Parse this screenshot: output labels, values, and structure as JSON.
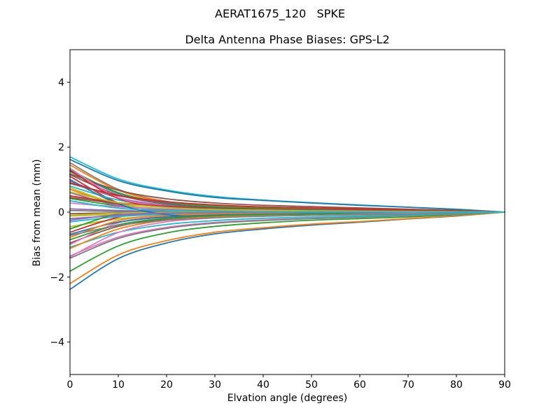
{
  "chart_data": {
    "type": "line",
    "suptitle": "AERAT1675_120   SPKE",
    "title": "Delta Antenna Phase Biases: GPS-L2",
    "xlabel": "Elvation angle (degrees)",
    "ylabel": "Bias from mean (mm)",
    "xlim": [
      0,
      90
    ],
    "ylim": [
      -5,
      5
    ],
    "xticks": [
      0,
      10,
      20,
      30,
      40,
      50,
      60,
      70,
      80,
      90
    ],
    "yticks": [
      -4,
      -2,
      0,
      2,
      4
    ],
    "grid": false,
    "legend": "none",
    "background": "#ffffff",
    "palette": [
      "#1f77b4",
      "#ff7f0e",
      "#2ca02c",
      "#d62728",
      "#9467bd",
      "#8c564b",
      "#e377c2",
      "#7f7f7f",
      "#bcbd22",
      "#17becf"
    ],
    "x": [
      0,
      10,
      20,
      30,
      40,
      50,
      60,
      70,
      80,
      90
    ],
    "series": [
      {
        "c": 0,
        "values": [
          -2.38,
          -1.43,
          -0.95,
          -0.67,
          -0.52,
          -0.4,
          -0.31,
          -0.21,
          -0.12,
          0
        ]
      },
      {
        "c": 1,
        "values": [
          -2.2,
          -1.32,
          -0.88,
          -0.62,
          -0.48,
          -0.37,
          -0.29,
          -0.2,
          -0.11,
          0
        ]
      },
      {
        "c": 2,
        "values": [
          -1.82,
          -1.04,
          -0.64,
          -0.44,
          -0.33,
          -0.25,
          -0.2,
          -0.15,
          -0.08,
          0
        ]
      },
      {
        "c": 3,
        "values": [
          1.1,
          0.28,
          -0.09,
          -0.13,
          -0.09,
          -0.06,
          -0.03,
          -0.01,
          0,
          0
        ]
      },
      {
        "c": 4,
        "values": [
          0.95,
          0.44,
          0.21,
          0.12,
          0.09,
          0.07,
          0.05,
          0.03,
          0.02,
          0
        ]
      },
      {
        "c": 5,
        "values": [
          1.15,
          0.53,
          0.25,
          0.15,
          0.1,
          0.08,
          0.06,
          0.03,
          0.02,
          0
        ]
      },
      {
        "c": 6,
        "values": [
          -1.35,
          -0.77,
          -0.47,
          -0.32,
          -0.24,
          -0.19,
          -0.15,
          -0.11,
          -0.06,
          0
        ]
      },
      {
        "c": 7,
        "values": [
          -1.42,
          -0.81,
          -0.5,
          -0.34,
          -0.26,
          -0.2,
          -0.16,
          -0.11,
          -0.06,
          0
        ]
      },
      {
        "c": 8,
        "values": [
          -0.45,
          -0.21,
          -0.1,
          -0.06,
          -0.04,
          -0.03,
          -0.02,
          -0.01,
          -0.01,
          0
        ]
      },
      {
        "c": 9,
        "values": [
          1.7,
          1.02,
          0.68,
          0.48,
          0.37,
          0.29,
          0.22,
          0.15,
          0.09,
          0
        ]
      },
      {
        "c": 0,
        "values": [
          1.62,
          0.97,
          0.65,
          0.45,
          0.36,
          0.28,
          0.21,
          0.15,
          0.08,
          0
        ]
      },
      {
        "c": 1,
        "values": [
          0.7,
          0.23,
          0.09,
          0.05,
          0.03,
          0.02,
          0.01,
          0.01,
          0.01,
          0
        ]
      },
      {
        "c": 2,
        "values": [
          0.42,
          0.19,
          0.09,
          0.05,
          0.04,
          0.03,
          0.02,
          0.01,
          0.01,
          0
        ]
      },
      {
        "c": 3,
        "values": [
          -0.62,
          -0.16,
          0.05,
          0.07,
          0.05,
          0.03,
          0.02,
          0.01,
          0,
          0
        ]
      },
      {
        "c": 4,
        "values": [
          0.6,
          0.2,
          0.08,
          0.04,
          0.02,
          0.02,
          0.01,
          0.01,
          0.01,
          0
        ]
      },
      {
        "c": 5,
        "values": [
          -0.95,
          -0.44,
          -0.21,
          -0.12,
          -0.09,
          -0.07,
          -0.05,
          -0.03,
          -0.02,
          0
        ]
      },
      {
        "c": 6,
        "values": [
          -1.0,
          -0.33,
          -0.13,
          -0.07,
          -0.04,
          -0.03,
          -0.02,
          -0.01,
          -0.01,
          0
        ]
      },
      {
        "c": 7,
        "values": [
          1.52,
          0.7,
          0.33,
          0.2,
          0.14,
          0.11,
          0.08,
          0.05,
          0.03,
          0
        ]
      },
      {
        "c": 8,
        "values": [
          -0.12,
          -0.07,
          -0.04,
          -0.03,
          -0.02,
          -0.02,
          -0.01,
          -0.01,
          -0.01,
          0
        ]
      },
      {
        "c": 9,
        "values": [
          0.8,
          0.37,
          0.18,
          0.1,
          0.07,
          0.06,
          0.04,
          0.02,
          0.02,
          0
        ]
      },
      {
        "c": 0,
        "values": [
          1.25,
          0.58,
          0.28,
          0.16,
          0.11,
          0.09,
          0.06,
          0.04,
          0.03,
          0
        ]
      },
      {
        "c": 1,
        "values": [
          1.45,
          0.67,
          0.32,
          0.19,
          0.13,
          0.1,
          0.07,
          0.04,
          0.03,
          0
        ]
      },
      {
        "c": 2,
        "values": [
          1.3,
          0.6,
          0.29,
          0.17,
          0.12,
          0.09,
          0.07,
          0.04,
          0.03,
          0
        ]
      },
      {
        "c": 3,
        "values": [
          1.28,
          0.42,
          0.17,
          0.09,
          0.05,
          0.04,
          0.03,
          0.01,
          0.01,
          0
        ]
      },
      {
        "c": 4,
        "values": [
          -0.2,
          -0.11,
          -0.07,
          -0.05,
          -0.04,
          -0.03,
          -0.02,
          -0.02,
          -0.01,
          0
        ]
      },
      {
        "c": 5,
        "values": [
          1.18,
          0.67,
          0.41,
          0.28,
          0.21,
          0.17,
          0.13,
          0.09,
          0.05,
          0
        ]
      },
      {
        "c": 6,
        "values": [
          1.35,
          0.45,
          0.18,
          0.09,
          0.05,
          0.04,
          0.03,
          0.01,
          0.01,
          0
        ]
      },
      {
        "c": 7,
        "values": [
          0.88,
          0.5,
          0.31,
          0.21,
          0.16,
          0.12,
          0.1,
          0.07,
          0.04,
          0
        ]
      },
      {
        "c": 8,
        "values": [
          0.75,
          0.25,
          0.1,
          0.05,
          0.03,
          0.02,
          0.02,
          0.01,
          0.01,
          0
        ]
      },
      {
        "c": 9,
        "values": [
          -0.3,
          -0.14,
          -0.07,
          -0.04,
          -0.03,
          -0.02,
          -0.02,
          -0.01,
          -0.01,
          0
        ]
      },
      {
        "c": 0,
        "values": [
          -0.68,
          -0.31,
          -0.15,
          -0.09,
          -0.06,
          -0.05,
          -0.03,
          -0.02,
          -0.01,
          0
        ]
      },
      {
        "c": 1,
        "values": [
          -0.78,
          -0.26,
          -0.1,
          -0.05,
          -0.03,
          -0.02,
          -0.02,
          -0.01,
          -0.01,
          0
        ]
      },
      {
        "c": 2,
        "values": [
          -0.52,
          -0.05,
          0.08,
          0.05,
          0.03,
          0.01,
          0.01,
          0,
          0,
          0
        ]
      },
      {
        "c": 3,
        "values": [
          0.5,
          0.29,
          0.18,
          0.12,
          0.09,
          0.07,
          0.06,
          0.04,
          0.02,
          0
        ]
      },
      {
        "c": 4,
        "values": [
          0.1,
          0.05,
          0.02,
          0.01,
          0.01,
          0.01,
          0.01,
          0,
          0,
          0
        ]
      },
      {
        "c": 5,
        "values": [
          -0.05,
          -0.02,
          -0.01,
          0,
          0,
          0,
          0,
          0,
          0,
          0
        ]
      },
      {
        "c": 6,
        "values": [
          0.28,
          0.16,
          0.1,
          0.07,
          0.05,
          0.04,
          0.03,
          0.02,
          0.01,
          0
        ]
      },
      {
        "c": 7,
        "values": [
          0.05,
          0.02,
          0.01,
          0.01,
          0,
          0,
          0,
          0,
          0,
          0
        ]
      },
      {
        "c": 8,
        "values": [
          -0.1,
          -0.03,
          -0.01,
          -0.01,
          0,
          0,
          0,
          0,
          0,
          0
        ]
      },
      {
        "c": 9,
        "values": [
          -1.08,
          -0.62,
          -0.38,
          -0.26,
          -0.19,
          -0.15,
          -0.12,
          -0.09,
          -0.05,
          0
        ]
      },
      {
        "c": 0,
        "values": [
          1.0,
          0.25,
          -0.08,
          -0.12,
          -0.08,
          -0.05,
          -0.03,
          -0.01,
          0,
          0
        ]
      },
      {
        "c": 1,
        "values": [
          -1.12,
          -0.52,
          -0.25,
          -0.15,
          -0.1,
          -0.08,
          -0.06,
          -0.03,
          -0.02,
          0
        ]
      },
      {
        "c": 2,
        "values": [
          -0.85,
          -0.39,
          -0.19,
          -0.11,
          -0.08,
          -0.06,
          -0.04,
          -0.03,
          -0.02,
          0
        ]
      },
      {
        "c": 3,
        "values": [
          0.9,
          0.51,
          0.32,
          0.22,
          0.16,
          0.13,
          0.1,
          0.07,
          0.04,
          0
        ]
      },
      {
        "c": 4,
        "values": [
          -0.25,
          -0.08,
          -0.03,
          -0.02,
          -0.01,
          -0.01,
          -0.01,
          0,
          0,
          0
        ]
      },
      {
        "c": 5,
        "values": [
          0.45,
          0.26,
          0.16,
          0.11,
          0.08,
          0.06,
          0.05,
          0.04,
          0.02,
          0
        ]
      },
      {
        "c": 6,
        "values": [
          -1.38,
          -0.63,
          -0.3,
          -0.18,
          -0.12,
          -0.1,
          -0.07,
          -0.04,
          -0.03,
          0
        ]
      },
      {
        "c": 7,
        "values": [
          -0.72,
          -0.41,
          -0.25,
          -0.17,
          -0.13,
          -0.1,
          -0.08,
          -0.06,
          -0.03,
          0
        ]
      },
      {
        "c": 8,
        "values": [
          0.62,
          0.29,
          0.14,
          0.08,
          0.06,
          0.04,
          0.03,
          0.02,
          0.01,
          0
        ]
      },
      {
        "c": 9,
        "values": [
          0.35,
          0.12,
          0.05,
          0.02,
          0.01,
          0.01,
          0.01,
          0,
          0,
          0
        ]
      }
    ]
  }
}
